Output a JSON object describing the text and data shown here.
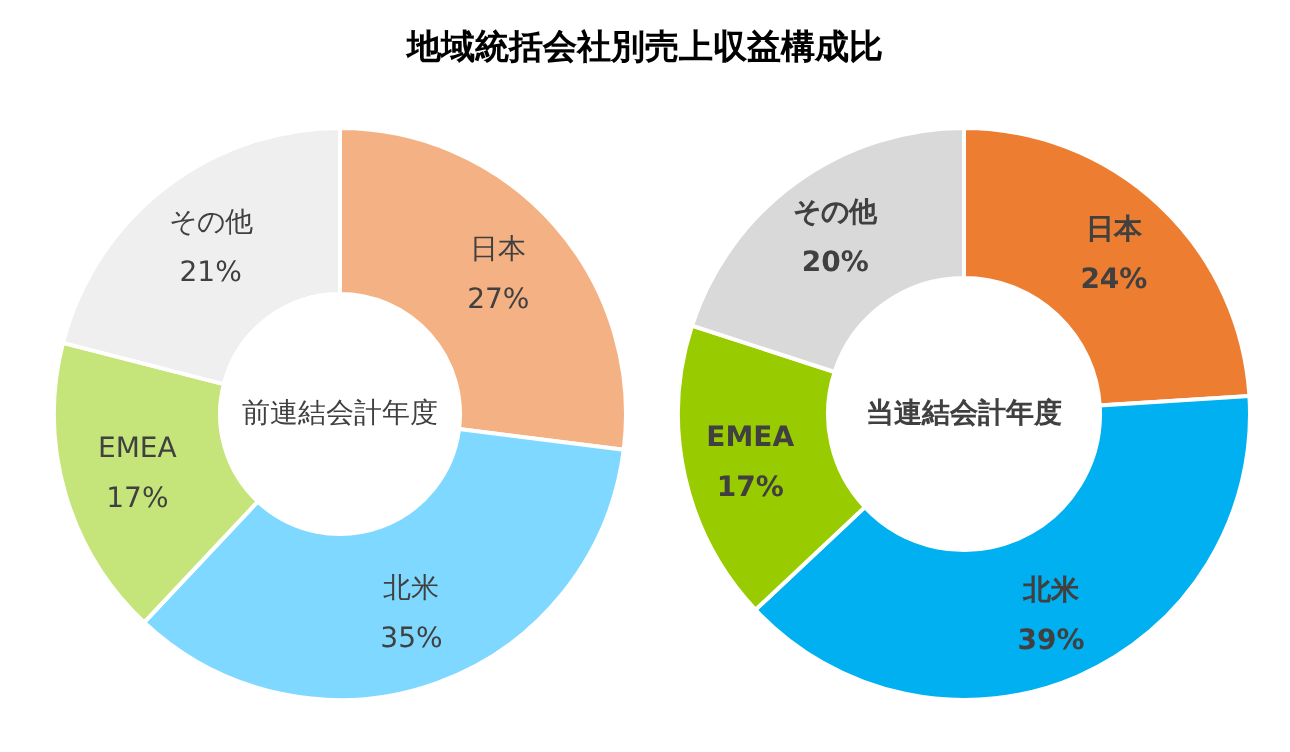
{
  "chart_data": [
    {
      "type": "donut",
      "title": "地域統括会社別売上収益構成比",
      "subtitle": "前連結会計年度",
      "categories": [
        "日本",
        "北米",
        "EMEA",
        "その他"
      ],
      "values": [
        27,
        35,
        17,
        21
      ],
      "value_labels": [
        "27%",
        "35%",
        "17%",
        "21%"
      ],
      "colors": [
        "#f4b183",
        "#7fd8ff",
        "#c5e57a",
        "#efefef"
      ]
    },
    {
      "type": "donut",
      "subtitle": "当連結会計年度",
      "categories": [
        "日本",
        "北米",
        "EMEA",
        "その他"
      ],
      "values": [
        24,
        39,
        17,
        20
      ],
      "value_labels": [
        "24%",
        "39%",
        "17%",
        "20%"
      ],
      "colors": [
        "#ed7d31",
        "#00b0f0",
        "#99cc00",
        "#d9d9d9"
      ]
    }
  ]
}
